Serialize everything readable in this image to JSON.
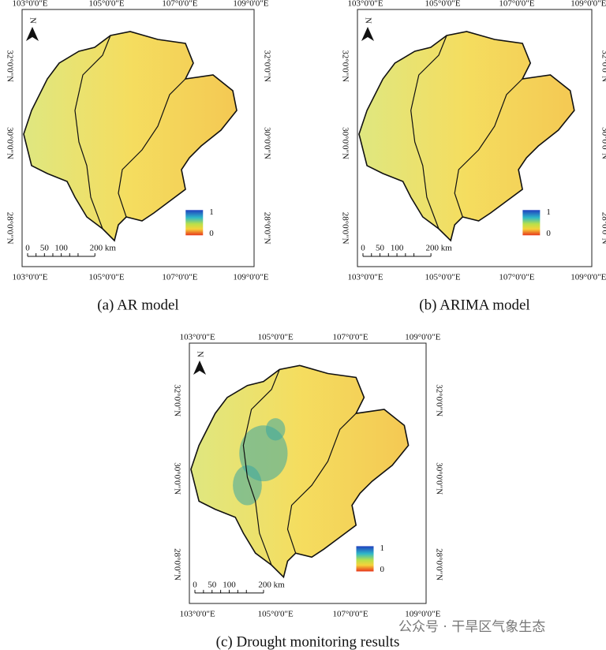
{
  "panels": [
    {
      "caption": "(a) AR model",
      "top_labels": [
        "103°0'0\"E",
        "105°0'0\"E",
        "107°0'0\"E",
        "109°0'0\"E"
      ],
      "bottom_labels": [
        "103°0'0\"E",
        "105°0'0\"E",
        "107°0'0\"E",
        "109°0'0\"E"
      ],
      "left_labels": [
        "32°0'0\"N",
        "30°0'0\"N",
        "28°0'0\"N"
      ],
      "right_labels": [
        "32°0'0\"N",
        "30°0'0\"N",
        "28°0'0\"N"
      ],
      "north": "N",
      "legend": {
        "max": 1,
        "min": 0
      },
      "scale": [
        "0",
        "50",
        "100",
        "200 km"
      ]
    },
    {
      "caption": "(b) ARIMA model",
      "top_labels": [
        "103°0'0\"E",
        "105°0'0\"E",
        "107°0'0\"E",
        "109°0'0\"E"
      ],
      "bottom_labels": [
        "103°0'0\"E",
        "105°0'0\"E",
        "107°0'0\"E",
        "109°0'0\"E"
      ],
      "left_labels": [
        "32°0'0\"N",
        "30°0'0\"N",
        "28°0'0\"N"
      ],
      "right_labels": [
        "32°0'0\"N",
        "30°0'0\"N",
        "28°0'0\"N"
      ],
      "north": "N",
      "legend": {
        "max": 1,
        "min": 0
      },
      "scale": [
        "0",
        "50",
        "100",
        "200 km"
      ]
    },
    {
      "caption": "(c) Drought monitoring results",
      "top_labels": [
        "103°0'0\"E",
        "105°0'0\"E",
        "107°0'0\"E",
        "109°0'0\"E"
      ],
      "bottom_labels": [
        "103°0'0\"E",
        "105°0'0\"E",
        "107°0'0\"E",
        "109°0'0\"E"
      ],
      "left_labels": [
        "32°0'0\"N",
        "30°0'0\"N",
        "28°0'0\"N"
      ],
      "right_labels": [
        "32°0'0\"N",
        "30°0'0\"N",
        "28°0'0\"N"
      ],
      "north": "N",
      "legend": {
        "max": 1,
        "min": 0
      },
      "scale": [
        "0",
        "50",
        "100",
        "200 km"
      ]
    }
  ],
  "watermark": "公众号 · 干旱区气象生态"
}
